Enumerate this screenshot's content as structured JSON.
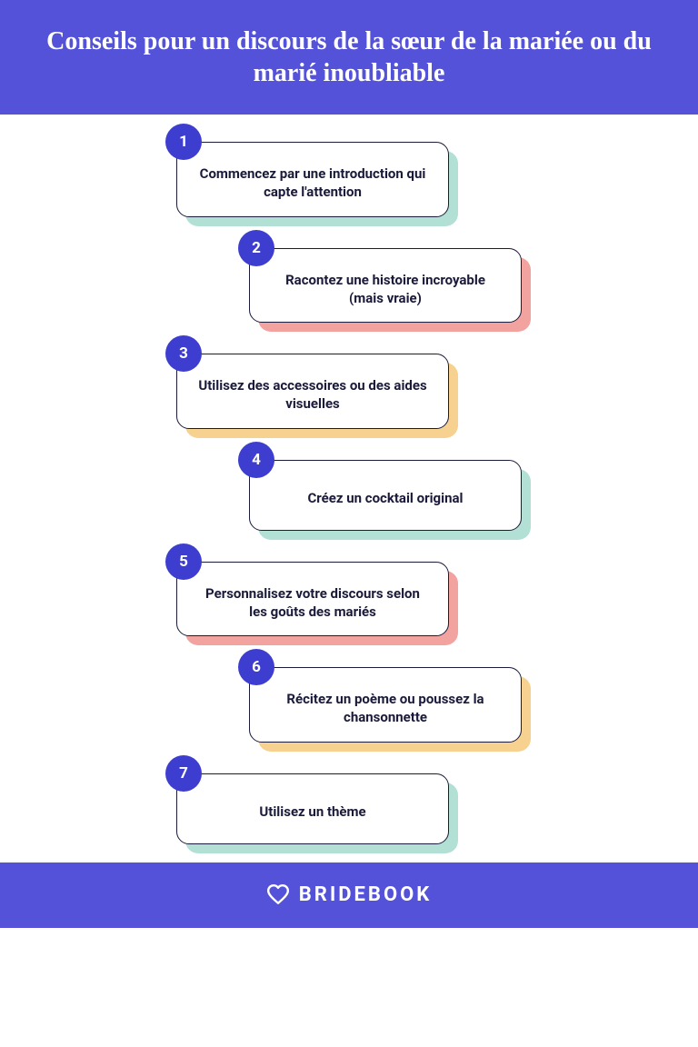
{
  "colors": {
    "header_bg": "#5352d9",
    "badge_bg": "#3d3dcf",
    "shadow_teal": "#b2e0d5",
    "shadow_salmon": "#f2a3a0",
    "shadow_gold": "#f7d190",
    "text_dark": "#1a1a3a"
  },
  "header": {
    "title": "Conseils pour un discours de la sœur de la mariée ou du marié inoubliable"
  },
  "tips": [
    {
      "num": "1",
      "text": "Commencez par une introduction qui capte l'attention",
      "shadow": "shadow_teal",
      "offset": "left"
    },
    {
      "num": "2",
      "text": "Racontez une histoire incroyable (mais vraie)",
      "shadow": "shadow_salmon",
      "offset": "right"
    },
    {
      "num": "3",
      "text": "Utilisez des accessoires ou des aides visuelles",
      "shadow": "shadow_gold",
      "offset": "left"
    },
    {
      "num": "4",
      "text": "Créez un cocktail original",
      "shadow": "shadow_teal",
      "offset": "right"
    },
    {
      "num": "5",
      "text": "Personnalisez votre discours selon les goûts des mariés",
      "shadow": "shadow_salmon",
      "offset": "left"
    },
    {
      "num": "6",
      "text": "Récitez un poème ou poussez la chansonnette",
      "shadow": "shadow_gold",
      "offset": "right"
    },
    {
      "num": "7",
      "text": "Utilisez un thème",
      "shadow": "shadow_teal",
      "offset": "left"
    }
  ],
  "footer": {
    "brand": "BRIDEBOOK"
  }
}
